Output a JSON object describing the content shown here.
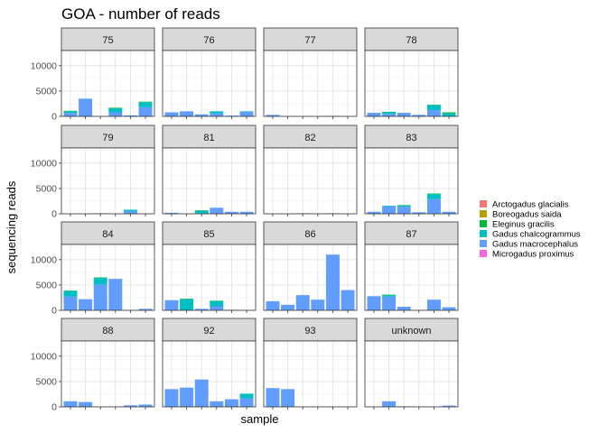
{
  "chart_data": {
    "type": "bar",
    "title": "GOA - number of reads",
    "xlabel": "sample",
    "ylabel": "sequencing reads",
    "ylim": [
      0,
      13000
    ],
    "yticks": [
      0,
      5000,
      10000
    ],
    "ytick_labels": [
      "0",
      "5000",
      "10000"
    ],
    "grid": true,
    "legend_position": "right",
    "species": [
      {
        "name": "Arctogadus glacialis",
        "color": "#F8766D"
      },
      {
        "name": "Boreogadus saida",
        "color": "#B79F00"
      },
      {
        "name": "Eleginus gracilis",
        "color": "#00BA38"
      },
      {
        "name": "Gadus chalcogrammus",
        "color": "#00BFC4"
      },
      {
        "name": "Gadus macrocephalus",
        "color": "#619CFF"
      },
      {
        "name": "Microgadus proximus",
        "color": "#F564E3"
      }
    ],
    "panels": [
      {
        "label": "75",
        "bars": [
          {
            "pos": 1,
            "segments": [
              {
                "species": "Gadus macrocephalus",
                "value": 700
              },
              {
                "species": "Gadus chalcogrammus",
                "value": 300
              },
              {
                "species": "Eleginus gracilis",
                "value": 100
              }
            ]
          },
          {
            "pos": 2,
            "segments": [
              {
                "species": "Gadus macrocephalus",
                "value": 3500
              }
            ]
          },
          {
            "pos": 4,
            "segments": [
              {
                "species": "Gadus macrocephalus",
                "value": 800
              },
              {
                "species": "Gadus chalcogrammus",
                "value": 800
              },
              {
                "species": "Eleginus gracilis",
                "value": 100
              }
            ]
          },
          {
            "pos": 5,
            "segments": [
              {
                "species": "Gadus macrocephalus",
                "value": 200
              }
            ]
          },
          {
            "pos": 6,
            "segments": [
              {
                "species": "Gadus macrocephalus",
                "value": 1800
              },
              {
                "species": "Gadus chalcogrammus",
                "value": 1000
              },
              {
                "species": "Eleginus gracilis",
                "value": 100
              }
            ]
          }
        ]
      },
      {
        "label": "76",
        "bars": [
          {
            "pos": 1,
            "segments": [
              {
                "species": "Gadus macrocephalus",
                "value": 800
              }
            ]
          },
          {
            "pos": 2,
            "segments": [
              {
                "species": "Gadus macrocephalus",
                "value": 1000
              }
            ]
          },
          {
            "pos": 3,
            "segments": [
              {
                "species": "Gadus macrocephalus",
                "value": 400
              }
            ]
          },
          {
            "pos": 4,
            "segments": [
              {
                "species": "Gadus macrocephalus",
                "value": 600
              },
              {
                "species": "Gadus chalcogrammus",
                "value": 400
              }
            ]
          },
          {
            "pos": 5,
            "segments": [
              {
                "species": "Gadus macrocephalus",
                "value": 150
              }
            ]
          },
          {
            "pos": 6,
            "segments": [
              {
                "species": "Gadus macrocephalus",
                "value": 900
              },
              {
                "species": "Gadus chalcogrammus",
                "value": 100
              }
            ]
          }
        ]
      },
      {
        "label": "77",
        "bars": [
          {
            "pos": 1,
            "segments": [
              {
                "species": "Gadus macrocephalus",
                "value": 300
              }
            ]
          },
          {
            "pos": 5,
            "segments": [
              {
                "species": "Gadus macrocephalus",
                "value": 100
              }
            ]
          }
        ]
      },
      {
        "label": "78",
        "bars": [
          {
            "pos": 1,
            "segments": [
              {
                "species": "Gadus macrocephalus",
                "value": 700
              }
            ]
          },
          {
            "pos": 2,
            "segments": [
              {
                "species": "Gadus macrocephalus",
                "value": 500
              },
              {
                "species": "Gadus chalcogrammus",
                "value": 300
              },
              {
                "species": "Eleginus gracilis",
                "value": 100
              }
            ]
          },
          {
            "pos": 3,
            "segments": [
              {
                "species": "Gadus macrocephalus",
                "value": 700
              }
            ]
          },
          {
            "pos": 4,
            "segments": [
              {
                "species": "Gadus macrocephalus",
                "value": 300
              }
            ]
          },
          {
            "pos": 5,
            "segments": [
              {
                "species": "Gadus macrocephalus",
                "value": 1200
              },
              {
                "species": "Gadus chalcogrammus",
                "value": 1000
              },
              {
                "species": "Eleginus gracilis",
                "value": 100
              }
            ]
          },
          {
            "pos": 6,
            "segments": [
              {
                "species": "Gadus chalcogrammus",
                "value": 600
              },
              {
                "species": "Eleginus gracilis",
                "value": 200
              }
            ]
          }
        ]
      },
      {
        "label": "79",
        "bars": [
          {
            "pos": 3,
            "segments": [
              {
                "species": "Gadus macrocephalus",
                "value": 100
              }
            ]
          },
          {
            "pos": 5,
            "segments": [
              {
                "species": "Gadus macrocephalus",
                "value": 500
              },
              {
                "species": "Gadus chalcogrammus",
                "value": 300
              }
            ]
          }
        ]
      },
      {
        "label": "81",
        "bars": [
          {
            "pos": 1,
            "segments": [
              {
                "species": "Gadus macrocephalus",
                "value": 200
              }
            ]
          },
          {
            "pos": 3,
            "segments": [
              {
                "species": "Gadus macrocephalus",
                "value": 100
              },
              {
                "species": "Gadus chalcogrammus",
                "value": 500
              },
              {
                "species": "Eleginus gracilis",
                "value": 100
              }
            ]
          },
          {
            "pos": 4,
            "segments": [
              {
                "species": "Gadus macrocephalus",
                "value": 1200
              }
            ]
          },
          {
            "pos": 5,
            "segments": [
              {
                "species": "Gadus macrocephalus",
                "value": 400
              }
            ]
          },
          {
            "pos": 6,
            "segments": [
              {
                "species": "Gadus macrocephalus",
                "value": 400
              }
            ]
          }
        ]
      },
      {
        "label": "82",
        "bars": [
          {
            "pos": 3,
            "segments": [
              {
                "species": "Gadus macrocephalus",
                "value": 100
              }
            ]
          },
          {
            "pos": 5,
            "segments": [
              {
                "species": "Gadus macrocephalus",
                "value": 100
              }
            ]
          }
        ]
      },
      {
        "label": "83",
        "bars": [
          {
            "pos": 1,
            "segments": [
              {
                "species": "Gadus macrocephalus",
                "value": 400
              }
            ]
          },
          {
            "pos": 2,
            "segments": [
              {
                "species": "Gadus macrocephalus",
                "value": 1500
              },
              {
                "species": "Gadus chalcogrammus",
                "value": 100
              }
            ]
          },
          {
            "pos": 3,
            "segments": [
              {
                "species": "Gadus macrocephalus",
                "value": 1400
              },
              {
                "species": "Gadus chalcogrammus",
                "value": 200
              },
              {
                "species": "Eleginus gracilis",
                "value": 100
              }
            ]
          },
          {
            "pos": 4,
            "segments": [
              {
                "species": "Gadus macrocephalus",
                "value": 300
              }
            ]
          },
          {
            "pos": 5,
            "segments": [
              {
                "species": "Gadus macrocephalus",
                "value": 2900
              },
              {
                "species": "Gadus chalcogrammus",
                "value": 1000
              },
              {
                "species": "Eleginus gracilis",
                "value": 100
              }
            ]
          },
          {
            "pos": 6,
            "segments": [
              {
                "species": "Gadus macrocephalus",
                "value": 400
              }
            ]
          }
        ]
      },
      {
        "label": "84",
        "bars": [
          {
            "pos": 1,
            "segments": [
              {
                "species": "Gadus macrocephalus",
                "value": 2700
              },
              {
                "species": "Gadus chalcogrammus",
                "value": 1100
              },
              {
                "species": "Eleginus gracilis",
                "value": 100
              }
            ]
          },
          {
            "pos": 2,
            "segments": [
              {
                "species": "Gadus macrocephalus",
                "value": 2200
              }
            ]
          },
          {
            "pos": 3,
            "segments": [
              {
                "species": "Gadus macrocephalus",
                "value": 5100
              },
              {
                "species": "Gadus chalcogrammus",
                "value": 1300
              },
              {
                "species": "Eleginus gracilis",
                "value": 100
              }
            ]
          },
          {
            "pos": 4,
            "segments": [
              {
                "species": "Gadus macrocephalus",
                "value": 6200
              }
            ]
          },
          {
            "pos": 6,
            "segments": [
              {
                "species": "Gadus macrocephalus",
                "value": 300
              }
            ]
          }
        ]
      },
      {
        "label": "85",
        "bars": [
          {
            "pos": 1,
            "segments": [
              {
                "species": "Gadus macrocephalus",
                "value": 2000
              }
            ]
          },
          {
            "pos": 2,
            "segments": [
              {
                "species": "Gadus chalcogrammus",
                "value": 2200
              },
              {
                "species": "Eleginus gracilis",
                "value": 100
              }
            ]
          },
          {
            "pos": 3,
            "segments": [
              {
                "species": "Gadus macrocephalus",
                "value": 300
              }
            ]
          },
          {
            "pos": 4,
            "segments": [
              {
                "species": "Gadus macrocephalus",
                "value": 800
              },
              {
                "species": "Gadus chalcogrammus",
                "value": 1000
              },
              {
                "species": "Eleginus gracilis",
                "value": 100
              }
            ]
          },
          {
            "pos": 5,
            "segments": [
              {
                "species": "Gadus macrocephalus",
                "value": 100
              }
            ]
          }
        ]
      },
      {
        "label": "86",
        "bars": [
          {
            "pos": 1,
            "segments": [
              {
                "species": "Gadus macrocephalus",
                "value": 1800
              }
            ]
          },
          {
            "pos": 2,
            "segments": [
              {
                "species": "Gadus macrocephalus",
                "value": 1100
              }
            ]
          },
          {
            "pos": 3,
            "segments": [
              {
                "species": "Gadus macrocephalus",
                "value": 3000
              }
            ]
          },
          {
            "pos": 4,
            "segments": [
              {
                "species": "Gadus macrocephalus",
                "value": 2100
              }
            ]
          },
          {
            "pos": 5,
            "segments": [
              {
                "species": "Gadus macrocephalus",
                "value": 11000
              }
            ]
          },
          {
            "pos": 6,
            "segments": [
              {
                "species": "Gadus macrocephalus",
                "value": 4000
              }
            ]
          }
        ]
      },
      {
        "label": "87",
        "bars": [
          {
            "pos": 1,
            "segments": [
              {
                "species": "Gadus macrocephalus",
                "value": 2800
              }
            ]
          },
          {
            "pos": 2,
            "segments": [
              {
                "species": "Gadus macrocephalus",
                "value": 2700
              },
              {
                "species": "Gadus chalcogrammus",
                "value": 300
              },
              {
                "species": "Eleginus gracilis",
                "value": 100
              }
            ]
          },
          {
            "pos": 3,
            "segments": [
              {
                "species": "Gadus macrocephalus",
                "value": 700
              }
            ]
          },
          {
            "pos": 5,
            "segments": [
              {
                "species": "Gadus macrocephalus",
                "value": 2100
              }
            ]
          },
          {
            "pos": 6,
            "segments": [
              {
                "species": "Gadus macrocephalus",
                "value": 600
              }
            ]
          }
        ]
      },
      {
        "label": "88",
        "bars": [
          {
            "pos": 1,
            "segments": [
              {
                "species": "Gadus macrocephalus",
                "value": 1100
              }
            ]
          },
          {
            "pos": 2,
            "segments": [
              {
                "species": "Gadus macrocephalus",
                "value": 950
              }
            ]
          },
          {
            "pos": 5,
            "segments": [
              {
                "species": "Gadus macrocephalus",
                "value": 300
              }
            ]
          },
          {
            "pos": 6,
            "segments": [
              {
                "species": "Gadus macrocephalus",
                "value": 450
              }
            ]
          }
        ]
      },
      {
        "label": "92",
        "bars": [
          {
            "pos": 1,
            "segments": [
              {
                "species": "Gadus macrocephalus",
                "value": 3500
              }
            ]
          },
          {
            "pos": 2,
            "segments": [
              {
                "species": "Gadus macrocephalus",
                "value": 3800
              }
            ]
          },
          {
            "pos": 3,
            "segments": [
              {
                "species": "Gadus macrocephalus",
                "value": 5400
              }
            ]
          },
          {
            "pos": 4,
            "segments": [
              {
                "species": "Gadus macrocephalus",
                "value": 1100
              }
            ]
          },
          {
            "pos": 5,
            "segments": [
              {
                "species": "Gadus macrocephalus",
                "value": 1500
              }
            ]
          },
          {
            "pos": 6,
            "segments": [
              {
                "species": "Gadus macrocephalus",
                "value": 1700
              },
              {
                "species": "Gadus chalcogrammus",
                "value": 900
              }
            ]
          }
        ]
      },
      {
        "label": "93",
        "bars": [
          {
            "pos": 1,
            "segments": [
              {
                "species": "Gadus macrocephalus",
                "value": 3700
              }
            ]
          },
          {
            "pos": 2,
            "segments": [
              {
                "species": "Gadus macrocephalus",
                "value": 3500
              }
            ]
          }
        ]
      },
      {
        "label": "unknown",
        "bars": [
          {
            "pos": 2,
            "segments": [
              {
                "species": "Gadus macrocephalus",
                "value": 1100
              }
            ]
          },
          {
            "pos": 3,
            "segments": [
              {
                "species": "Gadus macrocephalus",
                "value": 100
              }
            ]
          },
          {
            "pos": 6,
            "segments": [
              {
                "species": "Gadus macrocephalus",
                "value": 250
              }
            ]
          }
        ]
      }
    ]
  }
}
